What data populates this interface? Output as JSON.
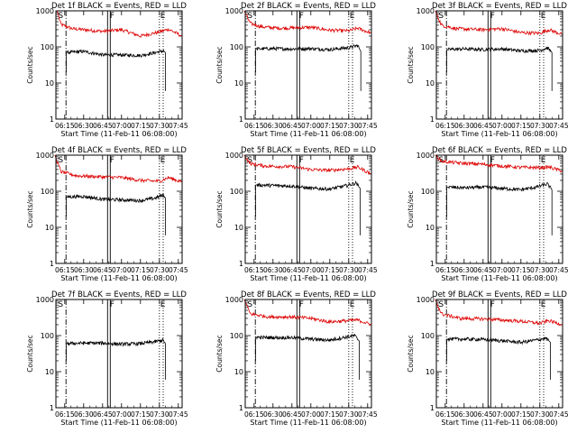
{
  "chart_data": {
    "type": "line",
    "y_scale": "log",
    "ylim": [
      1,
      1000
    ],
    "y_ticks": [
      "1",
      "10",
      "100",
      "1000"
    ],
    "ylabel": "Counts/sec",
    "xlabel": "Start Time (11-Feb-11 06:08:00)",
    "x_ticks": [
      "06:15",
      "06:30",
      "06:45",
      "07:00",
      "07:15",
      "07:30",
      "07:45"
    ],
    "xlim": [
      "06:08",
      "07:48"
    ],
    "markers": [
      {
        "label": "S",
        "time": "06:09",
        "style": "none"
      },
      {
        "label": "",
        "time": "06:16",
        "style": "dash-dot"
      },
      {
        "label": "F",
        "time": "06:50",
        "style": "double-solid"
      },
      {
        "label": "E",
        "time": "07:30",
        "style": "dotted"
      },
      {
        "label": "",
        "time": "07:33",
        "style": "dotted"
      }
    ],
    "series_colors": {
      "events": "#000000",
      "lld": "#dd0000"
    },
    "panels": [
      {
        "title": "Det 1f BLACK = Events, RED = LLD",
        "events": [
          [
            6.27,
            70
          ],
          [
            6.5,
            75
          ],
          [
            6.75,
            60
          ],
          [
            7.0,
            60
          ],
          [
            7.25,
            58
          ],
          [
            7.45,
            70
          ],
          [
            7.55,
            78
          ],
          [
            7.58,
            70
          ]
        ],
        "lld": [
          [
            6.15,
            1000
          ],
          [
            6.2,
            420
          ],
          [
            6.35,
            320
          ],
          [
            6.5,
            300
          ],
          [
            6.75,
            270
          ],
          [
            7.0,
            300
          ],
          [
            7.25,
            200
          ],
          [
            7.5,
            260
          ],
          [
            7.62,
            310
          ],
          [
            7.8,
            200
          ]
        ]
      },
      {
        "title": "Det 2f BLACK = Events, RED = LLD",
        "events": [
          [
            6.27,
            88
          ],
          [
            6.5,
            90
          ],
          [
            6.75,
            88
          ],
          [
            7.0,
            90
          ],
          [
            7.25,
            85
          ],
          [
            7.5,
            95
          ],
          [
            7.62,
            110
          ],
          [
            7.66,
            75
          ]
        ],
        "lld": [
          [
            6.12,
            1000
          ],
          [
            6.2,
            450
          ],
          [
            6.35,
            360
          ],
          [
            6.6,
            330
          ],
          [
            7.0,
            350
          ],
          [
            7.25,
            290
          ],
          [
            7.5,
            280
          ],
          [
            7.62,
            330
          ],
          [
            7.8,
            240
          ]
        ]
      },
      {
        "title": "Det 3f BLACK = Events, RED = LLD",
        "events": [
          [
            6.27,
            85
          ],
          [
            6.5,
            88
          ],
          [
            6.75,
            85
          ],
          [
            7.0,
            88
          ],
          [
            7.25,
            78
          ],
          [
            7.5,
            80
          ],
          [
            7.6,
            95
          ],
          [
            7.66,
            70
          ]
        ],
        "lld": [
          [
            6.12,
            1000
          ],
          [
            6.2,
            400
          ],
          [
            6.4,
            320
          ],
          [
            6.75,
            300
          ],
          [
            7.0,
            320
          ],
          [
            7.25,
            250
          ],
          [
            7.5,
            240
          ],
          [
            7.62,
            300
          ],
          [
            7.8,
            220
          ]
        ]
      },
      {
        "title": "Det 4f BLACK = Events, RED = LLD",
        "events": [
          [
            6.27,
            70
          ],
          [
            6.5,
            72
          ],
          [
            6.75,
            60
          ],
          [
            7.0,
            58
          ],
          [
            7.25,
            55
          ],
          [
            7.45,
            65
          ],
          [
            7.55,
            80
          ],
          [
            7.58,
            65
          ]
        ],
        "lld": [
          [
            6.12,
            1000
          ],
          [
            6.2,
            350
          ],
          [
            6.4,
            270
          ],
          [
            6.75,
            250
          ],
          [
            7.0,
            240
          ],
          [
            7.25,
            200
          ],
          [
            7.5,
            190
          ],
          [
            7.62,
            240
          ],
          [
            7.8,
            180
          ]
        ]
      },
      {
        "title": "Det 5f BLACK = Events, RED = LLD",
        "events": [
          [
            6.27,
            150
          ],
          [
            6.5,
            145
          ],
          [
            6.75,
            140
          ],
          [
            7.0,
            120
          ],
          [
            7.25,
            115
          ],
          [
            7.45,
            140
          ],
          [
            7.6,
            170
          ],
          [
            7.65,
            120
          ]
        ],
        "lld": [
          [
            6.12,
            1000
          ],
          [
            6.2,
            580
          ],
          [
            6.4,
            500
          ],
          [
            6.75,
            480
          ],
          [
            7.0,
            400
          ],
          [
            7.25,
            380
          ],
          [
            7.5,
            420
          ],
          [
            7.62,
            470
          ],
          [
            7.8,
            300
          ]
        ]
      },
      {
        "title": "Det 6f BLACK = Events, RED = LLD",
        "events": [
          [
            6.27,
            130
          ],
          [
            6.5,
            125
          ],
          [
            6.75,
            130
          ],
          [
            7.0,
            120
          ],
          [
            7.25,
            110
          ],
          [
            7.45,
            130
          ],
          [
            7.6,
            160
          ],
          [
            7.66,
            110
          ]
        ],
        "lld": [
          [
            6.12,
            1000
          ],
          [
            6.2,
            680
          ],
          [
            6.45,
            600
          ],
          [
            6.75,
            560
          ],
          [
            7.0,
            500
          ],
          [
            7.25,
            460
          ],
          [
            7.5,
            450
          ],
          [
            7.62,
            470
          ],
          [
            7.8,
            360
          ]
        ]
      },
      {
        "title": "Det 7f BLACK = Events, RED = LLD",
        "events": [
          [
            6.27,
            60
          ],
          [
            6.5,
            62
          ],
          [
            6.75,
            62
          ],
          [
            7.0,
            58
          ],
          [
            7.25,
            60
          ],
          [
            7.45,
            68
          ],
          [
            7.55,
            75
          ],
          [
            7.58,
            60
          ]
        ],
        "lld": []
      },
      {
        "title": "Det 8f BLACK = Events, RED = LLD",
        "events": [
          [
            6.27,
            90
          ],
          [
            6.5,
            88
          ],
          [
            6.75,
            88
          ],
          [
            7.0,
            80
          ],
          [
            7.25,
            75
          ],
          [
            7.45,
            90
          ],
          [
            7.58,
            100
          ],
          [
            7.64,
            70
          ]
        ],
        "lld": [
          [
            6.12,
            1000
          ],
          [
            6.2,
            400
          ],
          [
            6.45,
            330
          ],
          [
            6.75,
            330
          ],
          [
            7.0,
            300
          ],
          [
            7.25,
            240
          ],
          [
            7.5,
            260
          ],
          [
            7.62,
            270
          ],
          [
            7.8,
            200
          ]
        ]
      },
      {
        "title": "Det 9f BLACK = Events, RED = LLD",
        "events": [
          [
            6.27,
            80
          ],
          [
            6.5,
            80
          ],
          [
            6.75,
            78
          ],
          [
            7.0,
            72
          ],
          [
            7.25,
            65
          ],
          [
            7.45,
            75
          ],
          [
            7.58,
            85
          ],
          [
            7.64,
            65
          ]
        ],
        "lld": [
          [
            6.12,
            1000
          ],
          [
            6.2,
            400
          ],
          [
            6.45,
            300
          ],
          [
            6.75,
            290
          ],
          [
            7.0,
            270
          ],
          [
            7.25,
            250
          ],
          [
            7.5,
            220
          ],
          [
            7.62,
            260
          ],
          [
            7.8,
            200
          ]
        ]
      }
    ]
  }
}
